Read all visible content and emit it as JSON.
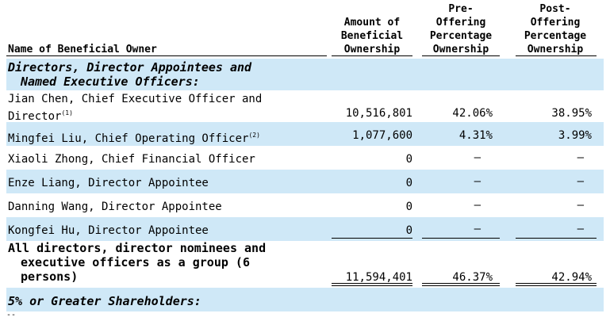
{
  "headers": {
    "name": "Name of Beneficial Owner",
    "amount": [
      "Amount of",
      "Beneficial",
      "Ownership"
    ],
    "pre": [
      "Pre-",
      "Offering",
      "Percentage",
      "Ownership"
    ],
    "post": [
      "Post-",
      "Offering",
      "Percentage",
      "Ownership"
    ]
  },
  "section1": [
    "Directors, Director Appointees and",
    "Named Executive Officers:"
  ],
  "rows": [
    {
      "name_l1": "Jian Chen, Chief Executive Officer and",
      "name_l2": "Director",
      "note": "(1)",
      "amount": "10,516,801",
      "pre": "42.06%",
      "post": "38.95%"
    },
    {
      "name": "Mingfei Liu, Chief Operating Officer",
      "note": "(2)",
      "amount": "1,077,600",
      "pre": "4.31%",
      "post": "3.99%"
    },
    {
      "name": "Xiaoli Zhong, Chief Financial Officer",
      "amount": "0",
      "pre": "—",
      "post": "—"
    },
    {
      "name": "Enze Liang, Director Appointee",
      "amount": "0",
      "pre": "—",
      "post": "—"
    },
    {
      "name": "Danning Wang, Director Appointee",
      "amount": "0",
      "pre": "—",
      "post": "—"
    },
    {
      "name": "Kongfei Hu, Director Appointee",
      "amount": "0",
      "pre": "—",
      "post": "—"
    }
  ],
  "total": {
    "l1": "All directors, director nominees and",
    "l2": "executive officers as a group (6",
    "l3": "persons)",
    "amount": "11,594,401",
    "pre": "46.37%",
    "post": "42.94%"
  },
  "section2": "5% or Greater Shareholders:",
  "footer": "--"
}
